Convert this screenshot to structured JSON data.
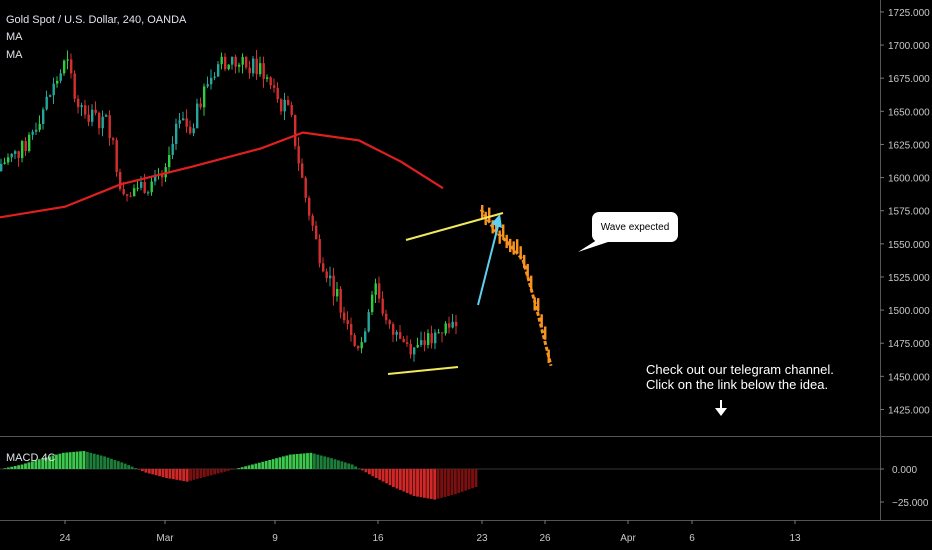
{
  "header": {
    "symbol_line": "Gold Spot / U.S. Dollar, 240, OANDA",
    "indicator_1": "MA",
    "indicator_2": "MA"
  },
  "annotations": {
    "callout": "Wave expected",
    "note_line_1": "Check out our telegram channel.",
    "note_line_2": "Click on the link below the idea."
  },
  "macd_panel": {
    "label": "MACD 4C",
    "tick_labels": [
      "0.000",
      "−25.000"
    ]
  },
  "colors": {
    "background": "#000000",
    "up_candle": "#26a69a",
    "up_candle_bright": "#2ecc40",
    "down_candle": "#d32f2f",
    "moving_average": "#e02020",
    "forecast_path": "#f7931e",
    "trend_lines": "#f2e85c",
    "arrow": "#5ed0f0"
  },
  "chart_data": {
    "type": "candlestick",
    "y_axis_labels": [
      "1725.000",
      "1700.000",
      "1675.000",
      "1650.000",
      "1625.000",
      "1600.000",
      "1575.000",
      "1550.000",
      "1525.000",
      "1500.000",
      "1475.000",
      "1450.000",
      "1425.000"
    ],
    "x_axis_labels": [
      "24",
      "Mar",
      "9",
      "16",
      "23",
      "26",
      "Apr",
      "6",
      "13"
    ],
    "ylim": [
      1408,
      1734
    ],
    "price_path": [
      [
        "2020-02-20",
        1605
      ],
      [
        "2020-02-21",
        1622
      ],
      [
        "2020-02-24",
        1688
      ],
      [
        "2020-02-25",
        1652
      ],
      [
        "2020-02-26",
        1645
      ],
      [
        "2020-02-27",
        1642
      ],
      [
        "2020-02-28",
        1590
      ],
      [
        "2020-03-02",
        1598
      ],
      [
        "2020-03-03",
        1640
      ],
      [
        "2020-03-04",
        1638
      ],
      [
        "2020-03-05",
        1670
      ],
      [
        "2020-03-06",
        1688
      ],
      [
        "2020-03-09",
        1682
      ],
      [
        "2020-03-10",
        1660
      ],
      [
        "2020-03-11",
        1648
      ],
      [
        "2020-03-12",
        1590
      ],
      [
        "2020-03-13",
        1545
      ],
      [
        "2020-03-16",
        1470
      ],
      [
        "2020-03-17",
        1525
      ],
      [
        "2020-03-18",
        1485
      ],
      [
        "2020-03-19",
        1478
      ],
      [
        "2020-03-20",
        1470
      ],
      [
        "2020-03-23",
        1496
      ]
    ],
    "moving_average": [
      [
        "2020-02-20",
        1570
      ],
      [
        "2020-02-24",
        1578
      ],
      [
        "2020-02-28",
        1595
      ],
      [
        "2020-03-04",
        1608
      ],
      [
        "2020-03-09",
        1622
      ],
      [
        "2020-03-12",
        1634
      ],
      [
        "2020-03-16",
        1628
      ],
      [
        "2020-03-19",
        1612
      ],
      [
        "2020-03-22",
        1592
      ]
    ],
    "forecast": [
      [
        "2020-03-23",
        1576
      ],
      [
        "2020-03-24",
        1560
      ],
      [
        "2020-03-25",
        1550
      ],
      [
        "2020-03-26",
        1538
      ],
      [
        "2020-03-27",
        1500
      ],
      [
        "2020-03-28",
        1458
      ]
    ],
    "macd_histogram": [
      0,
      5,
      12,
      18,
      20,
      14,
      6,
      -4,
      -10,
      -14,
      -8,
      -2,
      4,
      10,
      16,
      18,
      12,
      5,
      -8,
      -20,
      -30,
      -34,
      -28,
      -20
    ]
  }
}
